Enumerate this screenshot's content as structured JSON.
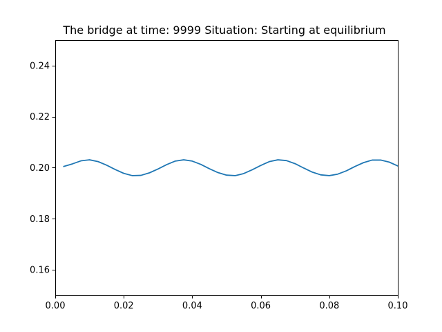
{
  "chart_data": {
    "type": "line",
    "title": "The bridge at time: 9999 Situation: Starting at equilibrium",
    "xlabel": "",
    "ylabel": "",
    "xlim": [
      0.0,
      0.1
    ],
    "ylim": [
      0.15,
      0.25
    ],
    "xticks": [
      0.0,
      0.02,
      0.04,
      0.06,
      0.08,
      0.1
    ],
    "xtick_labels": [
      "0.00",
      "0.02",
      "0.04",
      "0.06",
      "0.08",
      "0.10"
    ],
    "yticks": [
      0.16,
      0.18,
      0.2,
      0.22,
      0.24
    ],
    "ytick_labels": [
      "0.16",
      "0.18",
      "0.20",
      "0.22",
      "0.24"
    ],
    "grid": false,
    "series": [
      {
        "color": "#1f77b4",
        "x": [
          0.0025,
          0.005,
          0.0075,
          0.01,
          0.0125,
          0.015,
          0.0175,
          0.02,
          0.0225,
          0.025,
          0.0275,
          0.03,
          0.0325,
          0.035,
          0.0375,
          0.04,
          0.0425,
          0.045,
          0.0475,
          0.05,
          0.0525,
          0.055,
          0.0575,
          0.06,
          0.0625,
          0.065,
          0.0675,
          0.07,
          0.0725,
          0.075,
          0.0775,
          0.08,
          0.0825,
          0.085,
          0.0875,
          0.09,
          0.0925,
          0.095,
          0.0975,
          0.1
        ],
        "y": [
          0.2005,
          0.2015,
          0.2027,
          0.2031,
          0.2024,
          0.201,
          0.1993,
          0.1978,
          0.1969,
          0.197,
          0.198,
          0.1995,
          0.2012,
          0.2026,
          0.2031,
          0.2026,
          0.2013,
          0.1996,
          0.1981,
          0.1971,
          0.1969,
          0.1977,
          0.1992,
          0.2009,
          0.2024,
          0.2031,
          0.2028,
          0.2016,
          0.1999,
          0.1983,
          0.1972,
          0.1969,
          0.1975,
          0.1988,
          0.2005,
          0.202,
          0.203,
          0.203,
          0.2022,
          0.2007
        ]
      }
    ]
  }
}
